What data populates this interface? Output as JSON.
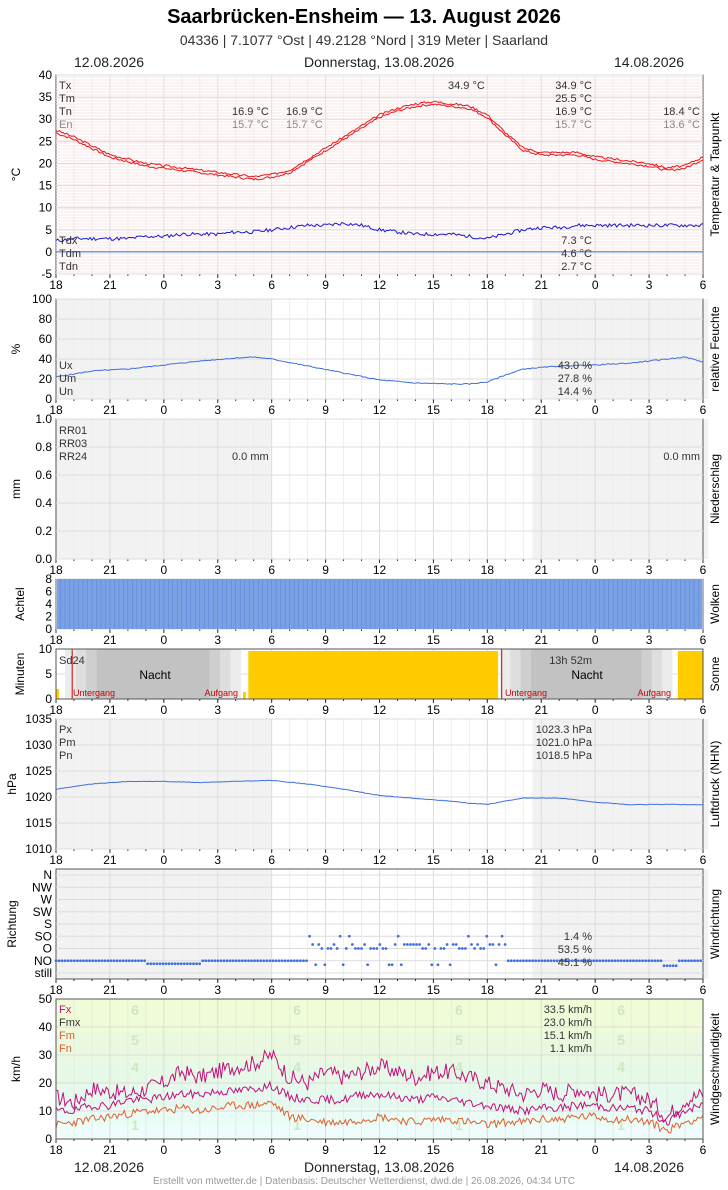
{
  "header": {
    "title": "Saarbrücken-Ensheim  —  13. August 2026",
    "subtitle": "04336  |  7.1077 °Ost  |  49.2128 °Nord  |  319 Meter  |  Saarland"
  },
  "datebar": {
    "left": "12.08.2026",
    "center": "Donnerstag, 13.08.2026",
    "right": "14.08.2026"
  },
  "footer": "Erstellt von mtwetter.de | Datenbasis: Deutscher Wetterdienst, dwd.de | 26.08.2026, 04:34 UTC",
  "colors": {
    "temp": "#e8141a",
    "dew": "#1a1acc",
    "line": "#3f6fde",
    "cloud": "#7aa0e6",
    "sun": "#ffcc00",
    "gust": "#c0117a",
    "mean": "#e06030"
  },
  "x_ticks": [
    "18",
    "21",
    "0",
    "3",
    "6",
    "9",
    "12",
    "15",
    "18",
    "21",
    "0",
    "3",
    "6"
  ],
  "chart_data": [
    {
      "type": "line",
      "name": "temperatur",
      "ylabel": "°C",
      "side_label": "Temperatur & Taupunkt",
      "ylim": [
        -5,
        40
      ],
      "y_ticks": [
        40,
        35,
        30,
        25,
        20,
        15,
        10,
        5,
        0,
        -5
      ],
      "x_hours_range": [
        -6,
        30
      ],
      "series": [
        {
          "name": "Temperatur",
          "x": [
            -6,
            -5,
            -4,
            -3,
            -2,
            -1,
            0,
            1,
            2,
            3,
            4,
            5,
            6,
            7,
            8,
            9,
            10,
            11,
            12,
            13,
            14,
            15,
            16,
            17,
            18,
            19,
            20,
            21,
            22,
            23,
            24,
            25,
            26,
            27,
            28,
            29,
            30
          ],
          "values": [
            27.5,
            26,
            24,
            22,
            21,
            20,
            19.5,
            19,
            18.5,
            18,
            17.5,
            17,
            17.5,
            18.5,
            21,
            23.5,
            26,
            28.5,
            31,
            32.5,
            33.5,
            34,
            33.5,
            33,
            31,
            27,
            23.5,
            22.5,
            22.5,
            22.5,
            21.5,
            21,
            20.5,
            20,
            19,
            19.5,
            21.5
          ]
        },
        {
          "name": "Taupunkt",
          "x": [
            -6,
            -5,
            -4,
            -3,
            -2,
            -1,
            0,
            1,
            2,
            3,
            4,
            5,
            6,
            7,
            8,
            9,
            10,
            11,
            12,
            13,
            14,
            15,
            16,
            17,
            18,
            19,
            20,
            21,
            22,
            23,
            24,
            25,
            26,
            27,
            28,
            29,
            30
          ],
          "values": [
            2.5,
            3,
            3,
            3,
            3,
            3.5,
            3.5,
            4,
            4,
            4,
            4.5,
            4.5,
            5,
            5.5,
            6,
            6,
            6.5,
            6,
            5,
            4.5,
            4,
            4,
            4,
            3.5,
            3,
            4,
            5,
            5.5,
            5.5,
            6,
            6,
            6,
            6,
            6,
            6,
            6,
            6
          ]
        }
      ],
      "legend_left": [
        "Tx",
        "Tm",
        "Tn",
        "En"
      ],
      "legend_left2": [
        "Tdx",
        "Tdm",
        "Tdn"
      ],
      "values_day1": [
        "16.9 °C",
        "15.7 °C"
      ],
      "values_day2": [
        "16.9 °C",
        "15.7 °C"
      ],
      "values_tx_label": "34.9 °C",
      "values_day": [
        "34.9 °C",
        "25.5 °C",
        "16.9 °C",
        "15.7 °C"
      ],
      "values_next": [
        "18.4 °C",
        "13.6 °C"
      ],
      "dew_values": [
        "7.3 °C",
        "4.6 °C",
        "2.7 °C"
      ]
    },
    {
      "type": "line",
      "name": "feuchte",
      "ylabel": "%",
      "side_label": "relative Feuchte",
      "ylim": [
        0,
        100
      ],
      "y_ticks": [
        100,
        80,
        60,
        40,
        20,
        0
      ],
      "series": [
        {
          "name": "relative Feuchte",
          "x": [
            -6,
            -4,
            -2,
            0,
            2,
            4,
            5,
            6,
            8,
            10,
            12,
            14,
            16,
            17,
            18,
            19,
            20,
            22,
            24,
            26,
            28,
            29,
            30
          ],
          "values": [
            22,
            28,
            30,
            34,
            38,
            41,
            42,
            40,
            33,
            26,
            19,
            16,
            15,
            15,
            17,
            24,
            30,
            33,
            34,
            36,
            40,
            42,
            37
          ]
        }
      ],
      "legend": [
        "Ux",
        "Um",
        "Un"
      ],
      "values": [
        "43.0 %",
        "27.8 %",
        "14.4 %"
      ]
    },
    {
      "type": "bar",
      "name": "niederschlag",
      "ylabel": "mm",
      "side_label": "Niederschlag",
      "ylim": [
        0,
        1.0
      ],
      "y_ticks": [
        "1.0",
        "0.8",
        "0.6",
        "0.4",
        "0.2",
        "0.0"
      ],
      "legend": [
        "RR01",
        "RR03",
        "RR24"
      ],
      "values_day1": "0.0 mm",
      "values_day2": "0.0 mm"
    },
    {
      "type": "bar",
      "name": "wolken",
      "ylabel": "Achtel",
      "side_label": "Wolken",
      "ylim": [
        0,
        8
      ],
      "y_ticks": [
        "8",
        "6",
        "4",
        "2",
        "0"
      ],
      "values": [
        8
      ]
    },
    {
      "type": "bar",
      "name": "sonne",
      "ylabel": "Minuten",
      "side_label": "Sonne",
      "ylim": [
        0,
        10
      ],
      "y_ticks": [
        "10",
        "5",
        "0"
      ],
      "sunshine_label": "Sd24",
      "sunshine_value": "13h 52m",
      "night_label": "Nacht",
      "sunset_label": "Untergang",
      "sunrise_label": "Aufgang"
    },
    {
      "type": "line",
      "name": "luftdruck",
      "ylabel": "hPa",
      "side_label": "Luftdruck (NHN)",
      "ylim": [
        1010,
        1035
      ],
      "y_ticks": [
        "1035",
        "1030",
        "1025",
        "1020",
        "1015",
        "1010"
      ],
      "series": [
        {
          "name": "Luftdruck",
          "x": [
            -6,
            -4,
            -2,
            0,
            2,
            4,
            6,
            8,
            10,
            12,
            14,
            16,
            17,
            18,
            20,
            22,
            24,
            26,
            28,
            30
          ],
          "values": [
            1021.5,
            1022.5,
            1023,
            1023,
            1022.8,
            1023,
            1023.2,
            1022.5,
            1021.5,
            1020.3,
            1019.7,
            1019.2,
            1018.8,
            1018.6,
            1019.8,
            1019.8,
            1019,
            1018.5,
            1018.6,
            1018.5
          ]
        }
      ],
      "legend": [
        "Px",
        "Pm",
        "Pn"
      ],
      "values": [
        "1023.3 hPa",
        "1021.0 hPa",
        "1018.5 hPa"
      ]
    },
    {
      "type": "scatter",
      "name": "windrichtung",
      "ylabel": "Richtung",
      "side_label": "Windrichtung",
      "y_ticks": [
        "N",
        "NW",
        "W",
        "SW",
        "S",
        "SO",
        "O",
        "NO",
        "still"
      ],
      "values": [
        "1.4 %",
        "53.5 %",
        "45.1 %"
      ]
    },
    {
      "type": "line",
      "name": "windgeschwindigkeit",
      "ylabel": "km/h",
      "side_label": "Windgeschwindigkeit",
      "ylim": [
        0,
        50
      ],
      "y_ticks": [
        "50",
        "40",
        "30",
        "20",
        "10",
        "0"
      ],
      "beaufort": [
        "6",
        "5",
        "4",
        "3",
        "2",
        "1"
      ],
      "series": [
        {
          "name": "Fx",
          "x": [
            -6,
            -5,
            -4,
            -3,
            -2,
            -1,
            0,
            1,
            2,
            3,
            4,
            5,
            6,
            7,
            8,
            9,
            10,
            11,
            12,
            13,
            14,
            15,
            16,
            17,
            18,
            19,
            20,
            21,
            22,
            23,
            24,
            25,
            26,
            27,
            28,
            29,
            30
          ],
          "values": [
            15,
            13,
            18,
            17,
            16,
            18,
            20,
            24,
            22,
            24,
            26,
            27,
            30,
            22,
            20,
            24,
            22,
            24,
            26,
            24,
            22,
            24,
            24,
            22,
            20,
            18,
            16,
            18,
            16,
            18,
            16,
            16,
            16,
            14,
            8,
            14,
            16
          ]
        },
        {
          "name": "Fm",
          "x": [
            -6,
            -5,
            -4,
            -3,
            -2,
            -1,
            0,
            1,
            2,
            3,
            4,
            5,
            6,
            7,
            8,
            9,
            10,
            11,
            12,
            13,
            14,
            15,
            16,
            17,
            18,
            19,
            20,
            21,
            22,
            23,
            24,
            25,
            26,
            27,
            28,
            29,
            30
          ],
          "values": [
            10,
            10,
            12,
            12,
            14,
            14,
            15,
            16,
            16,
            17,
            17,
            18,
            19,
            15,
            14,
            14,
            14,
            16,
            16,
            15,
            14,
            15,
            14,
            13,
            12,
            11,
            10,
            11,
            11,
            12,
            12,
            11,
            11,
            10,
            6,
            10,
            12
          ]
        },
        {
          "name": "Fn",
          "x": [
            -6,
            -5,
            -4,
            -3,
            -2,
            -1,
            0,
            1,
            2,
            3,
            4,
            5,
            6,
            7,
            8,
            9,
            10,
            11,
            12,
            13,
            14,
            15,
            16,
            17,
            18,
            19,
            20,
            21,
            22,
            23,
            24,
            25,
            26,
            27,
            28,
            29,
            30
          ],
          "values": [
            5,
            6,
            7,
            8,
            9,
            10,
            10,
            11,
            10,
            11,
            12,
            12,
            13,
            8,
            7,
            6,
            6,
            7,
            8,
            7,
            6,
            7,
            7,
            6,
            5,
            6,
            6,
            7,
            7,
            8,
            8,
            7,
            7,
            6,
            3,
            6,
            8
          ]
        }
      ],
      "legend": [
        "Fx",
        "Fmx",
        "Fm",
        "Fn"
      ],
      "values": [
        "33.5 km/h",
        "23.0 km/h",
        "15.1 km/h",
        "1.1 km/h"
      ]
    }
  ]
}
